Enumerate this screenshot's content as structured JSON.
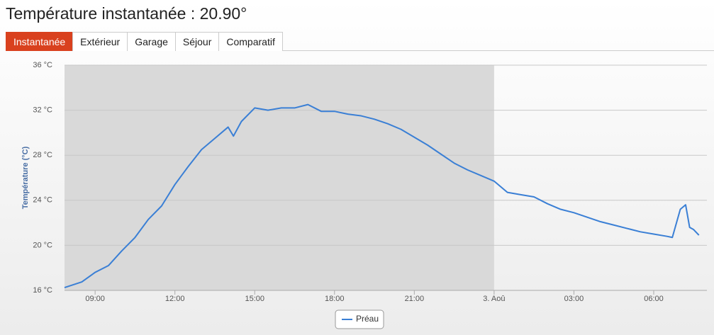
{
  "header": {
    "title": "Température instantanée : 20.90°"
  },
  "tabs": {
    "items": [
      "Instantanée",
      "Extérieur",
      "Garage",
      "Séjour",
      "Comparatif"
    ],
    "active": 0
  },
  "chart_data": {
    "type": "line",
    "y_label": "Température (°C)",
    "x": [
      7.85,
      8.5,
      9.0,
      9.5,
      10.0,
      10.5,
      11.0,
      11.5,
      12.0,
      12.5,
      13.0,
      13.5,
      14.0,
      14.2,
      14.5,
      15.0,
      15.5,
      16.0,
      16.5,
      17.0,
      17.5,
      18.0,
      18.5,
      19.0,
      19.5,
      20.0,
      20.5,
      21.0,
      21.5,
      22.0,
      22.5,
      23.0,
      23.5,
      24.0,
      24.5,
      25.0,
      25.5,
      26.0,
      26.5,
      27.0,
      27.5,
      28.0,
      28.5,
      29.0,
      29.5,
      30.0,
      30.5,
      30.7,
      31.0,
      31.2,
      31.35,
      31.5,
      31.7
    ],
    "series": [
      {
        "name": "Préau",
        "color": "#3a7fd5",
        "values": [
          16.25,
          16.75,
          17.6,
          18.2,
          19.5,
          20.7,
          22.3,
          23.5,
          25.4,
          27.0,
          28.5,
          29.5,
          30.5,
          29.7,
          31.0,
          32.2,
          32.0,
          32.2,
          32.2,
          32.5,
          31.9,
          31.9,
          31.65,
          31.5,
          31.2,
          30.8,
          30.3,
          29.6,
          28.9,
          28.1,
          27.3,
          26.7,
          26.2,
          25.7,
          24.7,
          24.5,
          24.3,
          23.7,
          23.2,
          22.9,
          22.5,
          22.1,
          21.8,
          21.5,
          21.2,
          21.0,
          20.8,
          20.7,
          23.2,
          23.6,
          21.6,
          21.4,
          20.9
        ]
      }
    ],
    "xlim": [
      7.85,
      32
    ],
    "xticks": [
      {
        "value": 9,
        "label": "09:00"
      },
      {
        "value": 12,
        "label": "12:00"
      },
      {
        "value": 15,
        "label": "15:00"
      },
      {
        "value": 18,
        "label": "18:00"
      },
      {
        "value": 21,
        "label": "21:00"
      },
      {
        "value": 24,
        "label": "3. Aoû"
      },
      {
        "value": 27,
        "label": "03:00"
      },
      {
        "value": 30,
        "label": "06:00"
      }
    ],
    "ylim": [
      16,
      36
    ],
    "yticks": [
      {
        "value": 16,
        "label": "16 °C"
      },
      {
        "value": 20,
        "label": "20 °C"
      },
      {
        "value": 24,
        "label": "24 °C"
      },
      {
        "value": 28,
        "label": "28 °C"
      },
      {
        "value": 32,
        "label": "32 °C"
      },
      {
        "value": 36,
        "label": "36 °C"
      }
    ],
    "plot_band": {
      "from": 7.85,
      "to": 24,
      "color": "#d9d9d9"
    },
    "grid": true
  }
}
